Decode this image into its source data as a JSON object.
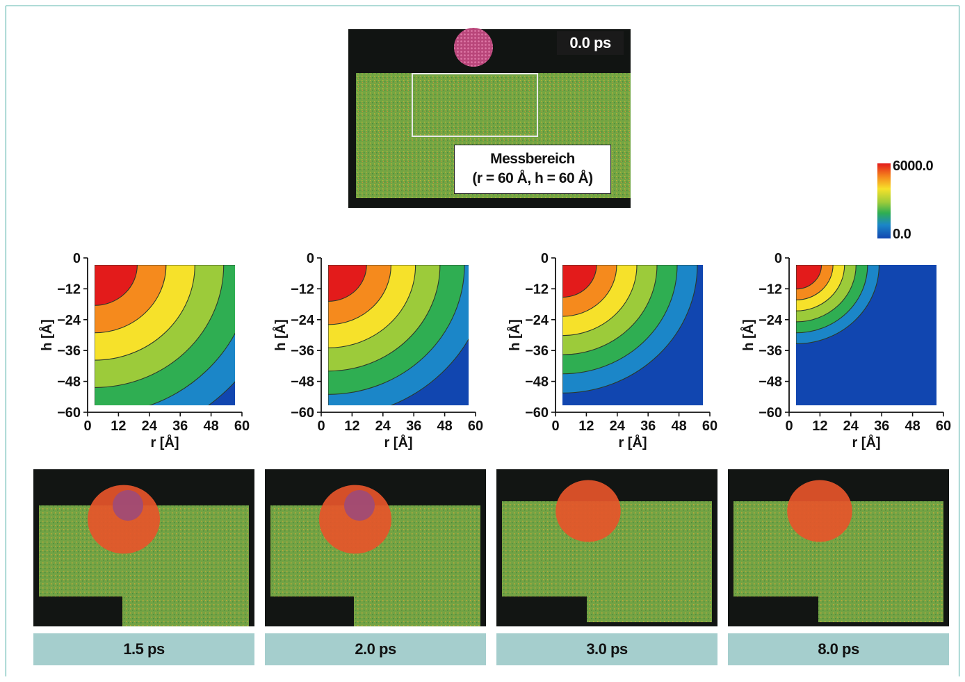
{
  "top_panel": {
    "time": "0.0 ps",
    "label_line1": "Messbereich",
    "label_line2": "(r = 60 Å, h = 60 Å)"
  },
  "colorbar": {
    "max_label": "6000.0",
    "min_label": "0.0",
    "colors": [
      "#e31b1b",
      "#f58a1d",
      "#f6e12a",
      "#9ccb3a",
      "#2fae52",
      "#1b86c8",
      "#1146b0"
    ]
  },
  "axes": {
    "xlabel": "r [Å]",
    "ylabel": "h [Å]",
    "xticks": [
      "0",
      "12",
      "24",
      "36",
      "48",
      "60"
    ],
    "yticks": [
      "0",
      "−12",
      "−24",
      "−36",
      "−48",
      "−60"
    ]
  },
  "panels": [
    {
      "time": "1.5 ps",
      "level": 1.0
    },
    {
      "time": "2.0 ps",
      "level": 0.85
    },
    {
      "time": "3.0 ps",
      "level": 0.7
    },
    {
      "time": "8.0 ps",
      "level": 0.4
    }
  ],
  "colors": {
    "accent_frame": "#3aa79c",
    "time_bar": "#a5cecd",
    "green": "#6ea53f",
    "dark": "#121513"
  }
}
